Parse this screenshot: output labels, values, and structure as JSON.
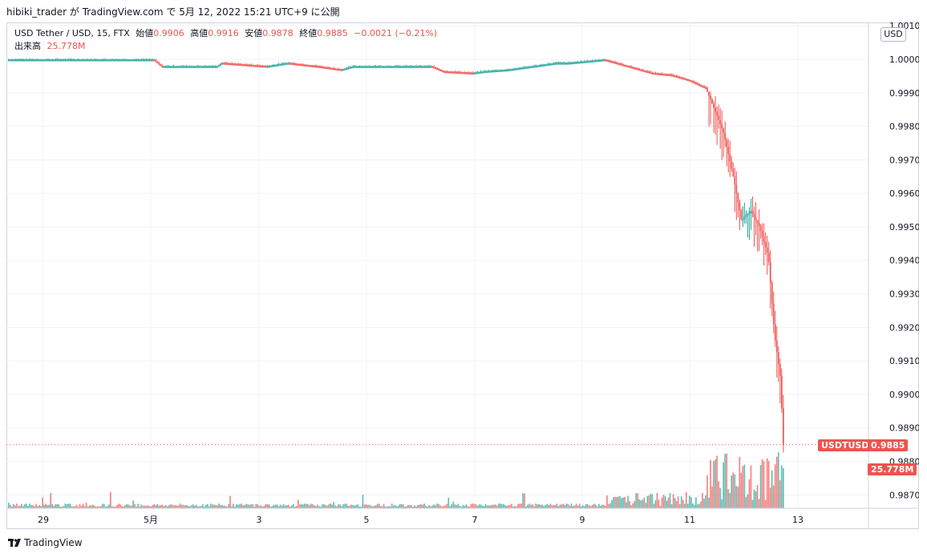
{
  "header": {
    "publish_line": "hibiki_trader が TradingView.com で 5月 12, 2022 15:21 UTC+9 に公開"
  },
  "legend": {
    "symbol": "USD Tether / USD, 15, FTX",
    "open_label": "始値",
    "open": "0.9906",
    "high_label": "高値",
    "high": "0.9916",
    "low_label": "安値",
    "low": "0.9878",
    "close_label": "終値",
    "close": "0.9885",
    "change": "−0.0021 (−0.21%)",
    "volume_label": "出来高",
    "volume": "25.778M"
  },
  "currency_button": "USD",
  "price_tag": {
    "symbol": "USDTUSD",
    "value": "0.9885"
  },
  "volume_tag": "25.778M",
  "brand": "TradingView",
  "colors": {
    "up": "#26a69a",
    "down": "#ef5350",
    "grid": "#f0f3fa",
    "axis_text": "#131722"
  },
  "chart_data": {
    "type": "candlestick",
    "ylim": [
      0.9866,
      1.0011
    ],
    "y_ticks": [
      "1.0010",
      "1.0000",
      "0.9990",
      "0.9980",
      "0.9970",
      "0.9960",
      "0.9950",
      "0.9940",
      "0.9930",
      "0.9920",
      "0.9910",
      "0.9900",
      "0.9890",
      "0.9880",
      "0.9870"
    ],
    "x_ticks": [
      "29",
      "5月",
      "3",
      "5",
      "7",
      "9",
      "11",
      "13"
    ],
    "last_price": 0.9885,
    "price_path": [
      [
        0.0,
        1.0
      ],
      [
        0.245,
        1.0
      ],
      [
        0.258,
        0.9998
      ],
      [
        0.352,
        0.9998
      ],
      [
        0.36,
        0.9999
      ],
      [
        0.435,
        0.9998
      ],
      [
        0.47,
        0.9999
      ],
      [
        0.52,
        0.9998
      ],
      [
        0.56,
        0.9997
      ],
      [
        0.58,
        0.9998
      ],
      [
        0.71,
        0.9998
      ],
      [
        0.73,
        0.99965
      ],
      [
        0.78,
        0.9996
      ],
      [
        0.8,
        0.99965
      ],
      [
        0.84,
        0.9997
      ],
      [
        0.88,
        0.9998
      ],
      [
        0.92,
        0.9999
      ],
      [
        0.94,
        0.9999
      ],
      [
        1.0,
        1.0
      ],
      [
        1.08,
        0.9996
      ],
      [
        1.11,
        0.99955
      ],
      [
        1.14,
        0.9994
      ],
      [
        1.17,
        0.99915
      ],
      [
        1.185,
        0.9985
      ],
      [
        1.2,
        0.9978
      ],
      [
        1.215,
        0.9966
      ],
      [
        1.23,
        0.9952
      ],
      [
        1.245,
        0.9955
      ],
      [
        1.26,
        0.995
      ],
      [
        1.275,
        0.9941
      ],
      [
        1.285,
        0.9918
      ],
      [
        1.295,
        0.9905
      ],
      [
        1.3,
        0.9885
      ]
    ]
  }
}
